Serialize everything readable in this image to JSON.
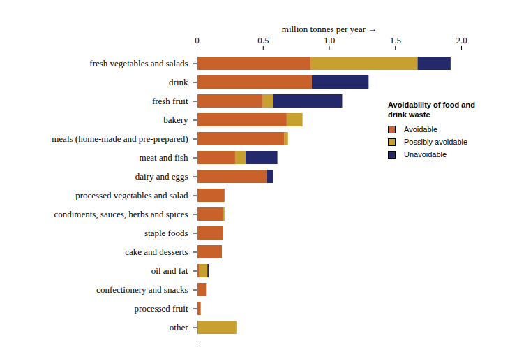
{
  "chart_data": {
    "type": "bar",
    "orientation": "horizontal",
    "stacked": true,
    "grid": false,
    "legend": "right",
    "legend_title": "Avoidability of food and drink waste",
    "xlabel": "million tonnes per year",
    "xlim": [
      0,
      2.0
    ],
    "xticks": [
      0,
      0.5,
      {
        "value": 1.0,
        "label": "1.0"
      },
      1.5,
      {
        "value": 2.0,
        "label": "2.0"
      }
    ],
    "categories": [
      "fresh vegetables and salads",
      "drink",
      "fresh fruit",
      "bakery",
      "meals (home-made and pre-prepared)",
      "meat and fish",
      "dairy and eggs",
      "processed vegetables and salad",
      "condiments, sauces, herbs and spices",
      "staple foods",
      "cake and desserts",
      "oil and fat",
      "confectionery and snacks",
      "processed fruit",
      "other"
    ],
    "series": [
      {
        "name": "Avoidable",
        "color": "#c8622a",
        "values": [
          0.86,
          0.87,
          0.5,
          0.68,
          0.66,
          0.29,
          0.53,
          0.21,
          0.2,
          0.2,
          0.19,
          0.02,
          0.07,
          0.03,
          0.01
        ]
      },
      {
        "name": "Possibly avoidable",
        "color": "#c8a030",
        "values": [
          0.81,
          0,
          0.08,
          0.12,
          0.03,
          0.08,
          0,
          0,
          0.01,
          0,
          0,
          0.06,
          0,
          0,
          0.29
        ]
      },
      {
        "name": "Unavoidable",
        "color": "#24296b",
        "values": [
          0.25,
          0.43,
          0.52,
          0,
          0,
          0.24,
          0.05,
          0,
          0,
          0,
          0,
          0.01,
          0,
          0,
          0
        ]
      }
    ]
  }
}
